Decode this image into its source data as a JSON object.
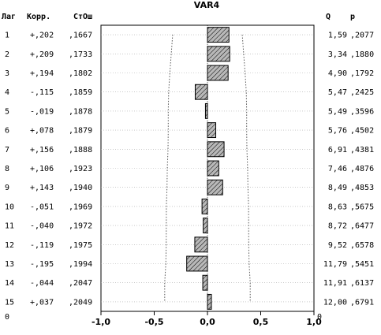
{
  "chart_data": {
    "type": "bar",
    "title": "VAR4",
    "headers": {
      "lag": "Лаг",
      "corr": "Корр.",
      "se": "СтОш",
      "q": "Q",
      "p": "p"
    },
    "rows": [
      {
        "lag": "1",
        "corr_text": "+,202",
        "se_text": ",1667",
        "q_text": "1,59",
        "p_text": ",2077",
        "value": 0.202,
        "se": 0.1667
      },
      {
        "lag": "2",
        "corr_text": "+,209",
        "se_text": ",1733",
        "q_text": "3,34",
        "p_text": ",1880",
        "value": 0.209,
        "se": 0.1733
      },
      {
        "lag": "3",
        "corr_text": "+,194",
        "se_text": ",1802",
        "q_text": "4,90",
        "p_text": ",1792",
        "value": 0.194,
        "se": 0.1802
      },
      {
        "lag": "4",
        "corr_text": "-,115",
        "se_text": ",1859",
        "q_text": "5,47",
        "p_text": ",2425",
        "value": -0.115,
        "se": 0.1859
      },
      {
        "lag": "5",
        "corr_text": "-,019",
        "se_text": ",1878",
        "q_text": "5,49",
        "p_text": ",3596",
        "value": -0.019,
        "se": 0.1878
      },
      {
        "lag": "6",
        "corr_text": "+,078",
        "se_text": ",1879",
        "q_text": "5,76",
        "p_text": ",4502",
        "value": 0.078,
        "se": 0.1879
      },
      {
        "lag": "7",
        "corr_text": "+,156",
        "se_text": ",1888",
        "q_text": "6,91",
        "p_text": ",4381",
        "value": 0.156,
        "se": 0.1888
      },
      {
        "lag": "8",
        "corr_text": "+,106",
        "se_text": ",1923",
        "q_text": "7,46",
        "p_text": ",4876",
        "value": 0.106,
        "se": 0.1923
      },
      {
        "lag": "9",
        "corr_text": "+,143",
        "se_text": ",1940",
        "q_text": "8,49",
        "p_text": ",4853",
        "value": 0.143,
        "se": 0.194
      },
      {
        "lag": "10",
        "corr_text": "-,051",
        "se_text": ",1969",
        "q_text": "8,63",
        "p_text": ",5675",
        "value": -0.051,
        "se": 0.1969
      },
      {
        "lag": "11",
        "corr_text": "-,040",
        "se_text": ",1972",
        "q_text": "8,72",
        "p_text": ",6477",
        "value": -0.04,
        "se": 0.1972
      },
      {
        "lag": "12",
        "corr_text": "-,119",
        "se_text": ",1975",
        "q_text": "9,52",
        "p_text": ",6578",
        "value": -0.119,
        "se": 0.1975
      },
      {
        "lag": "13",
        "corr_text": "-,195",
        "se_text": ",1994",
        "q_text": "11,79",
        "p_text": ",5451",
        "value": -0.195,
        "se": 0.1994
      },
      {
        "lag": "14",
        "corr_text": "-,044",
        "se_text": ",2047",
        "q_text": "11,91",
        "p_text": ",6137",
        "value": -0.044,
        "se": 0.2047
      },
      {
        "lag": "15",
        "corr_text": "+,037",
        "se_text": ",2049",
        "q_text": "12,00",
        "p_text": ",6791",
        "value": 0.037,
        "se": 0.2049
      }
    ],
    "xlim": [
      -1.0,
      1.0
    ],
    "x_ticks": [
      {
        "value": -1.0,
        "label": "-1,0"
      },
      {
        "value": -0.5,
        "label": "-0,5"
      },
      {
        "value": 0.0,
        "label": "0,0"
      },
      {
        "value": 0.5,
        "label": "0,5"
      },
      {
        "value": 1.0,
        "label": "1,0"
      }
    ],
    "left_axis_labels": [
      "0"
    ],
    "right_axis_labels": [
      "0"
    ],
    "confidence_multiplier": 1.96,
    "grid": true,
    "colors": {
      "bar_fill": "#b0b0b0",
      "bar_stroke": "#000000",
      "grid": "#aaaaaa",
      "limit": "#555555"
    }
  }
}
